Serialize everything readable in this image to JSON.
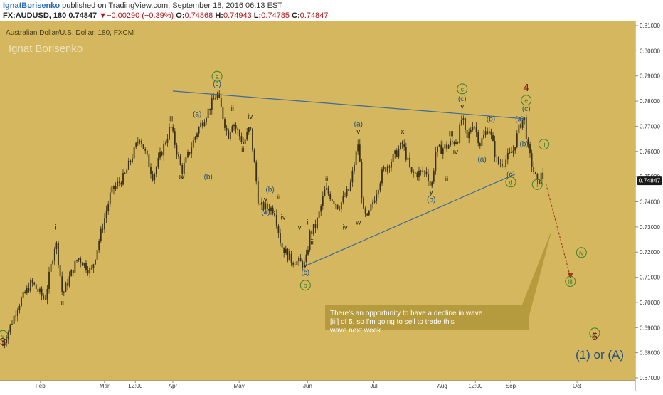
{
  "header": {
    "author": "IgnatBorisenko",
    "published": "published on TradingView.com, September 18, 2016 06:13 EST",
    "symbol": "FX:AUDUSD, 180",
    "last": "0.74847",
    "change_arrow": "▼",
    "change": "−0.00290 (−0.39%)",
    "o_label": "O:",
    "o_value": "0.74868",
    "h_label": "H:",
    "h_value": "0.74943",
    "l_label": "L:",
    "l_value": "0.74785",
    "c_label": "C:",
    "c_value": "0.74847"
  },
  "colors": {
    "background": "#d4b75f",
    "candle": "#3a2f12",
    "trendline": "#3d6b9c",
    "wave_dark": "#2d2410",
    "wave_blue": "#1f4f80",
    "wave_green": "#3f7f2a",
    "wave_red": "#7a1a0e",
    "callout": "#b59a3e",
    "price_tag": "#1a1a1a"
  },
  "chart_data": {
    "type": "candlestick",
    "title": "Australian Dollar/U.S. Dollar, 180, FXCM",
    "watermark": "Ignat Borisenko",
    "x_labels": [
      "Feb",
      "Mar",
      "12:00",
      "Apr",
      "May",
      "Jun",
      "Jul",
      "Aug",
      "12:00",
      "Sep",
      "Oct"
    ],
    "y_ticks": [
      "0.81000",
      "0.80000",
      "0.79000",
      "0.78000",
      "0.77000",
      "0.76000",
      "0.75000",
      "0.74000",
      "0.73000",
      "0.72000",
      "0.71000",
      "0.70000",
      "0.69000",
      "0.68000",
      "0.67000"
    ],
    "ylim": [
      0.666,
      0.813
    ],
    "last_price": "0.74847",
    "anchors": [
      {
        "d": "Jan 15",
        "p": 0.683
      },
      {
        "d": "Jan 22",
        "p": 0.699
      },
      {
        "d": "Jan 28",
        "p": 0.708
      },
      {
        "d": "Feb 03",
        "p": 0.701
      },
      {
        "d": "Feb 08",
        "p": 0.725
      },
      {
        "d": "Feb 11",
        "p": 0.703
      },
      {
        "d": "Feb 18",
        "p": 0.718
      },
      {
        "d": "Feb 24",
        "p": 0.712
      },
      {
        "d": "Mar 04",
        "p": 0.744
      },
      {
        "d": "Mar 10",
        "p": 0.75
      },
      {
        "d": "Mar 17",
        "p": 0.766
      },
      {
        "d": "Mar 23",
        "p": 0.75
      },
      {
        "d": "Mar 31",
        "p": 0.77
      },
      {
        "d": "Apr 05",
        "p": 0.752
      },
      {
        "d": "Apr 12",
        "p": 0.768
      },
      {
        "d": "Apr 21",
        "p": 0.783
      },
      {
        "d": "Apr 26",
        "p": 0.766
      },
      {
        "d": "Apr 28",
        "p": 0.772
      },
      {
        "d": "May 03",
        "p": 0.763
      },
      {
        "d": "May 06",
        "p": 0.77
      },
      {
        "d": "May 10",
        "p": 0.738
      },
      {
        "d": "May 12",
        "p": 0.738
      },
      {
        "d": "May 17",
        "p": 0.737
      },
      {
        "d": "May 20",
        "p": 0.723
      },
      {
        "d": "May 24",
        "p": 0.717
      },
      {
        "d": "May 31",
        "p": 0.715
      },
      {
        "d": "Jun 02",
        "p": 0.727
      },
      {
        "d": "Jun 05",
        "p": 0.731
      },
      {
        "d": "Jun 09",
        "p": 0.745
      },
      {
        "d": "Jun 15",
        "p": 0.738
      },
      {
        "d": "Jun 20",
        "p": 0.745
      },
      {
        "d": "Jun 24",
        "p": 0.764
      },
      {
        "d": "Jun 26",
        "p": 0.736
      },
      {
        "d": "Jun 28",
        "p": 0.733
      },
      {
        "d": "Jul 05",
        "p": 0.752
      },
      {
        "d": "Jul 11",
        "p": 0.759
      },
      {
        "d": "Jul 14",
        "p": 0.763
      },
      {
        "d": "Jul 18",
        "p": 0.751
      },
      {
        "d": "Jul 25",
        "p": 0.752
      },
      {
        "d": "Jul 27",
        "p": 0.745
      },
      {
        "d": "Jul 29",
        "p": 0.76
      },
      {
        "d": "Aug 03",
        "p": 0.762
      },
      {
        "d": "Aug 08",
        "p": 0.765
      },
      {
        "d": "Aug 10",
        "p": 0.774
      },
      {
        "d": "Aug 12",
        "p": 0.764
      },
      {
        "d": "Aug 15",
        "p": 0.772
      },
      {
        "d": "Aug 18",
        "p": 0.763
      },
      {
        "d": "Aug 22",
        "p": 0.77
      },
      {
        "d": "Aug 26",
        "p": 0.755
      },
      {
        "d": "Aug 29",
        "p": 0.756
      },
      {
        "d": "Sep 02",
        "p": 0.76
      },
      {
        "d": "Sep 05",
        "p": 0.77
      },
      {
        "d": "Sep 07",
        "p": 0.774
      },
      {
        "d": "Sep 09",
        "p": 0.76
      },
      {
        "d": "Sep 13",
        "p": 0.747
      },
      {
        "d": "Sep 15",
        "p": 0.751
      },
      {
        "d": "Sep 16",
        "p": 0.7485
      }
    ],
    "trendlines": [
      {
        "from": {
          "d": "Apr 01",
          "p": 0.784
        },
        "to": {
          "d": "Sep 07",
          "p": 0.773
        }
      },
      {
        "from": {
          "d": "May 31",
          "p": 0.7145
        },
        "to": {
          "d": "Sep 03",
          "p": 0.751
        }
      }
    ],
    "projection": [
      {
        "d": "Sep 17",
        "p": 0.747
      },
      {
        "d": "Sep 28",
        "p": 0.71
      }
    ],
    "wave_labels": [
      {
        "t": "v",
        "d": "Jan 15",
        "p": 0.686,
        "c": "green",
        "circle": true
      },
      {
        "t": "3",
        "d": "Jan 15",
        "p": 0.683,
        "c": "red",
        "big": true
      },
      {
        "t": "i",
        "d": "Feb 08",
        "p": 0.729,
        "c": "dark"
      },
      {
        "t": "ii",
        "d": "Feb 11",
        "p": 0.699,
        "c": "dark"
      },
      {
        "t": "iii",
        "d": "Mar 31",
        "p": 0.772,
        "c": "dark"
      },
      {
        "t": "iv",
        "d": "Apr 05",
        "p": 0.749,
        "c": "dark"
      },
      {
        "t": "(a)",
        "d": "Apr 12",
        "p": 0.774,
        "c": "blue"
      },
      {
        "t": "(b)",
        "d": "Apr 17",
        "p": 0.749,
        "c": "blue"
      },
      {
        "t": "(c)",
        "d": "Apr 21",
        "p": 0.786,
        "c": "blue"
      },
      {
        "t": "a",
        "d": "Apr 21",
        "p": 0.789,
        "c": "green",
        "circle": true
      },
      {
        "t": "i",
        "d": "Apr 26",
        "p": 0.769,
        "c": "dark"
      },
      {
        "t": "ii",
        "d": "Apr 28",
        "p": 0.776,
        "c": "dark"
      },
      {
        "t": "iii",
        "d": "May 03",
        "p": 0.76,
        "c": "dark"
      },
      {
        "t": "iv",
        "d": "May 06",
        "p": 0.773,
        "c": "dark"
      },
      {
        "t": "(a)",
        "d": "May 13",
        "p": 0.735,
        "c": "blue"
      },
      {
        "t": "(b)",
        "d": "May 15",
        "p": 0.744,
        "c": "blue"
      },
      {
        "t": "v",
        "d": "May 13",
        "p": 0.74,
        "c": "dark"
      },
      {
        "t": "i",
        "d": "May 17",
        "p": 0.734,
        "c": "dark"
      },
      {
        "t": "ii",
        "d": "May 19",
        "p": 0.741,
        "c": "dark"
      },
      {
        "t": "iv",
        "d": "May 21",
        "p": 0.733,
        "c": "dark"
      },
      {
        "t": "iii",
        "d": "May 23",
        "p": 0.719,
        "c": "dark"
      },
      {
        "t": "v",
        "d": "May 31",
        "p": 0.714,
        "c": "dark"
      },
      {
        "t": "(c)",
        "d": "May 31",
        "p": 0.711,
        "c": "blue"
      },
      {
        "t": "b",
        "d": "May 31",
        "p": 0.706,
        "c": "green",
        "circle": true
      },
      {
        "t": "iv",
        "d": "May 28",
        "p": 0.729,
        "c": "dark"
      },
      {
        "t": "i",
        "d": "Jun 01",
        "p": 0.731,
        "c": "dark"
      },
      {
        "t": "ii",
        "d": "Jun 03",
        "p": 0.723,
        "c": "dark"
      },
      {
        "t": "iii",
        "d": "Jun 10",
        "p": 0.748,
        "c": "dark"
      },
      {
        "t": "iv",
        "d": "Jun 18",
        "p": 0.729,
        "c": "dark"
      },
      {
        "t": "(a)",
        "d": "Jun 24",
        "p": 0.77,
        "c": "blue"
      },
      {
        "t": "v",
        "d": "Jun 24",
        "p": 0.767,
        "c": "dark"
      },
      {
        "t": "w",
        "d": "Jun 24",
        "p": 0.731,
        "c": "dark"
      },
      {
        "t": "x",
        "d": "Jul 14",
        "p": 0.767,
        "c": "dark"
      },
      {
        "t": "y",
        "d": "Jul 27",
        "p": 0.743,
        "c": "dark"
      },
      {
        "t": "(b)",
        "d": "Jul 27",
        "p": 0.74,
        "c": "blue"
      },
      {
        "t": "i",
        "d": "Aug 01",
        "p": 0.762,
        "c": "dark"
      },
      {
        "t": "ii",
        "d": "Aug 03",
        "p": 0.748,
        "c": "dark"
      },
      {
        "t": "iii",
        "d": "Aug 05",
        "p": 0.766,
        "c": "dark"
      },
      {
        "t": "iv",
        "d": "Aug 07",
        "p": 0.759,
        "c": "dark"
      },
      {
        "t": "v",
        "d": "Aug 10",
        "p": 0.777,
        "c": "dark"
      },
      {
        "t": "(c)",
        "d": "Aug 10",
        "p": 0.78,
        "c": "blue"
      },
      {
        "t": "c",
        "d": "Aug 10",
        "p": 0.784,
        "c": "green",
        "circle": true
      },
      {
        "t": "(a)",
        "d": "Aug 19",
        "p": 0.756,
        "c": "blue"
      },
      {
        "t": "(b)",
        "d": "Aug 23",
        "p": 0.772,
        "c": "blue"
      },
      {
        "t": "(c)",
        "d": "Sep 01",
        "p": 0.75,
        "c": "blue"
      },
      {
        "t": "d",
        "d": "Sep 01",
        "p": 0.747,
        "c": "green",
        "circle": true
      },
      {
        "t": "(a)",
        "d": "Sep 05",
        "p": 0.772,
        "c": "blue"
      },
      {
        "t": "(b)",
        "d": "Sep 07",
        "p": 0.762,
        "c": "blue"
      },
      {
        "t": "(c)",
        "d": "Sep 08",
        "p": 0.776,
        "c": "blue"
      },
      {
        "t": "e",
        "d": "Sep 08",
        "p": 0.7795,
        "c": "green",
        "circle": true
      },
      {
        "t": "4",
        "d": "Sep 08",
        "p": 0.784,
        "c": "red",
        "big": true
      },
      {
        "t": "i",
        "d": "Sep 13",
        "p": 0.746,
        "c": "green",
        "circle": true
      },
      {
        "t": "ii",
        "d": "Sep 16",
        "p": 0.762,
        "c": "green",
        "circle": true
      },
      {
        "t": "iii",
        "d": "Sep 28",
        "p": 0.7075,
        "c": "green",
        "circle": true
      },
      {
        "t": "iv",
        "d": "Oct 03",
        "p": 0.719,
        "c": "green",
        "circle": true
      },
      {
        "t": "v",
        "d": "Oct 09",
        "p": 0.687,
        "c": "green",
        "circle": true
      },
      {
        "t": "5",
        "d": "Oct 09",
        "p": 0.685,
        "c": "red",
        "big": true
      }
    ],
    "big_label": "(1) or (A)",
    "callout": "There's an opportunity to have a decline in wave [iii] of 5, so I'm going to sell to trade this wave next week"
  }
}
